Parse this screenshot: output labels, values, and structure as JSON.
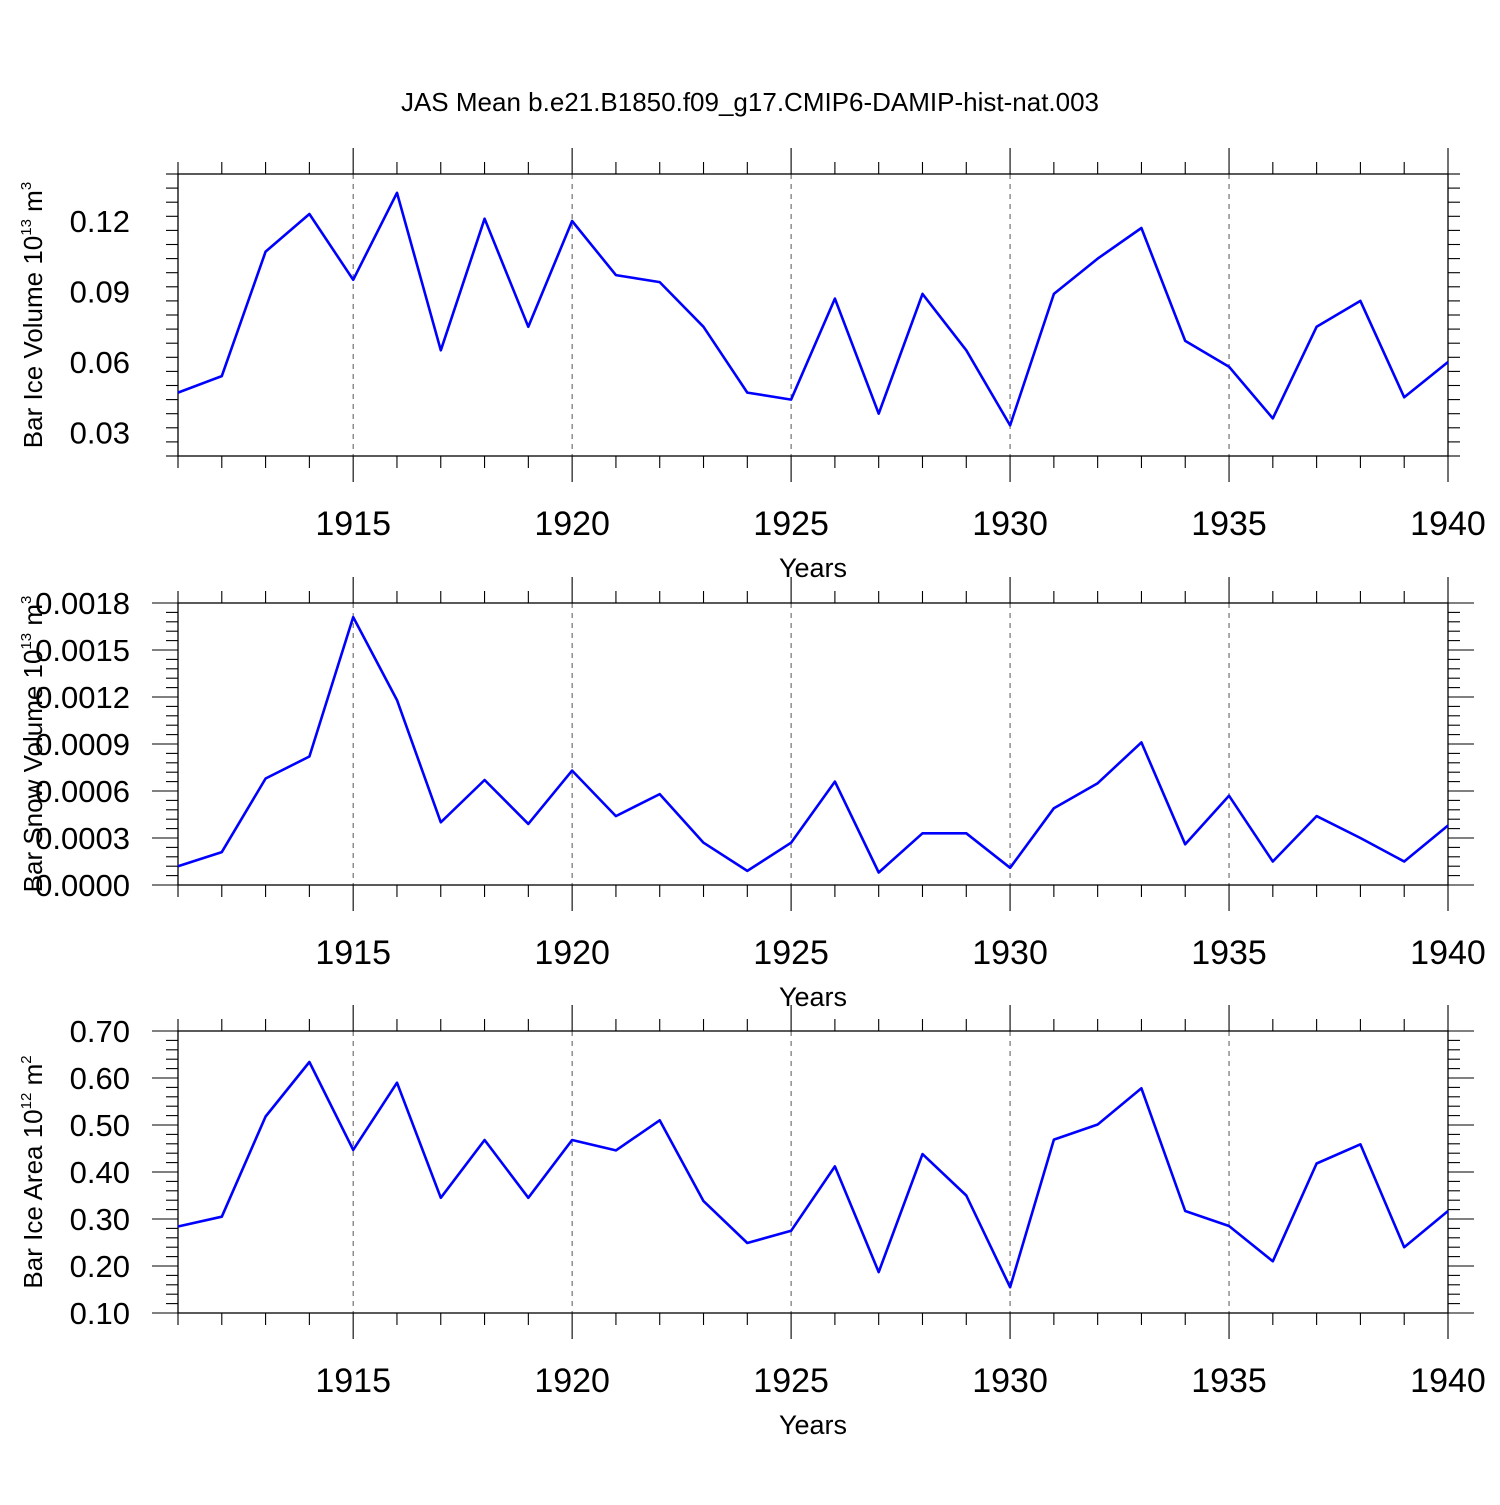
{
  "title": "JAS Mean b.e21.B1850.f09_g17.CMIP6-DAMIP-hist-nat.003",
  "colors": {
    "series": "#0000ff",
    "axes": "#000000",
    "grid": "#555555"
  },
  "chart_data": [
    {
      "type": "line",
      "xlabel": "Years",
      "ylabel": {
        "prefix": "Bar Ice Volume 10",
        "exp": "13",
        "unit": " m",
        "unit_exp": "3"
      },
      "xlim": [
        1911,
        1940
      ],
      "ylim": [
        0.02,
        0.14
      ],
      "xticks": [
        1915,
        1920,
        1925,
        1930,
        1935,
        1940
      ],
      "yticks": [
        0.03,
        0.06,
        0.09,
        0.12
      ],
      "ytick_labels": [
        "0.03",
        "0.06",
        "0.09",
        "0.12"
      ],
      "grid": "dashed vertical at major x ticks",
      "x": [
        1911,
        1912,
        1913,
        1914,
        1915,
        1916,
        1917,
        1918,
        1919,
        1920,
        1921,
        1922,
        1923,
        1924,
        1925,
        1926,
        1927,
        1928,
        1929,
        1930,
        1931,
        1932,
        1933,
        1934,
        1935,
        1936,
        1937,
        1938,
        1939,
        1940
      ],
      "values": [
        0.047,
        0.054,
        0.107,
        0.123,
        0.095,
        0.132,
        0.065,
        0.121,
        0.075,
        0.12,
        0.097,
        0.094,
        0.075,
        0.047,
        0.044,
        0.087,
        0.038,
        0.089,
        0.065,
        0.033,
        0.089,
        0.104,
        0.117,
        0.069,
        0.058,
        0.036,
        0.075,
        0.086,
        0.045,
        0.06
      ]
    },
    {
      "type": "line",
      "xlabel": "Years",
      "ylabel": {
        "prefix": "Bar Snow Volume 10",
        "exp": "13",
        "unit": " m",
        "unit_exp": "3"
      },
      "xlim": [
        1911,
        1940
      ],
      "ylim": [
        0.0,
        0.0018
      ],
      "xticks": [
        1915,
        1920,
        1925,
        1930,
        1935,
        1940
      ],
      "yticks": [
        0.0,
        0.0003,
        0.0006,
        0.0009,
        0.0012,
        0.0015,
        0.0018
      ],
      "ytick_labels": [
        "0.0000",
        "0.0003",
        "0.0006",
        "0.0009",
        "0.0012",
        "0.0015",
        "0.0018"
      ],
      "grid": "dashed vertical at major x ticks",
      "x": [
        1911,
        1912,
        1913,
        1914,
        1915,
        1916,
        1917,
        1918,
        1919,
        1920,
        1921,
        1922,
        1923,
        1924,
        1925,
        1926,
        1927,
        1928,
        1929,
        1930,
        1931,
        1932,
        1933,
        1934,
        1935,
        1936,
        1937,
        1938,
        1939,
        1940
      ],
      "values": [
        0.00012,
        0.00021,
        0.00068,
        0.00082,
        0.00171,
        0.00118,
        0.0004,
        0.00067,
        0.00039,
        0.00073,
        0.00044,
        0.00058,
        0.00027,
        9e-05,
        0.00027,
        0.00066,
        8e-05,
        0.00033,
        0.00033,
        0.00011,
        0.00049,
        0.00065,
        0.00091,
        0.00026,
        0.00057,
        0.00015,
        0.00044,
        0.0003,
        0.00015,
        0.00038
      ]
    },
    {
      "type": "line",
      "xlabel": "Years",
      "ylabel": {
        "prefix": "Bar Ice Area 10",
        "exp": "12",
        "unit": " m",
        "unit_exp": "2"
      },
      "xlim": [
        1911,
        1940
      ],
      "ylim": [
        0.1,
        0.7
      ],
      "xticks": [
        1915,
        1920,
        1925,
        1930,
        1935,
        1940
      ],
      "yticks": [
        0.1,
        0.2,
        0.3,
        0.4,
        0.5,
        0.6,
        0.7
      ],
      "ytick_labels": [
        "0.10",
        "0.20",
        "0.30",
        "0.40",
        "0.50",
        "0.60",
        "0.70"
      ],
      "grid": "dashed vertical at major x ticks",
      "x": [
        1911,
        1912,
        1913,
        1914,
        1915,
        1916,
        1917,
        1918,
        1919,
        1920,
        1921,
        1922,
        1923,
        1924,
        1925,
        1926,
        1927,
        1928,
        1929,
        1930,
        1931,
        1932,
        1933,
        1934,
        1935,
        1936,
        1937,
        1938,
        1939,
        1940
      ],
      "values": [
        0.284,
        0.305,
        0.518,
        0.634,
        0.447,
        0.59,
        0.345,
        0.468,
        0.345,
        0.468,
        0.446,
        0.51,
        0.338,
        0.249,
        0.275,
        0.412,
        0.187,
        0.438,
        0.35,
        0.155,
        0.469,
        0.501,
        0.578,
        0.317,
        0.285,
        0.21,
        0.418,
        0.459,
        0.24,
        0.317
      ]
    }
  ]
}
